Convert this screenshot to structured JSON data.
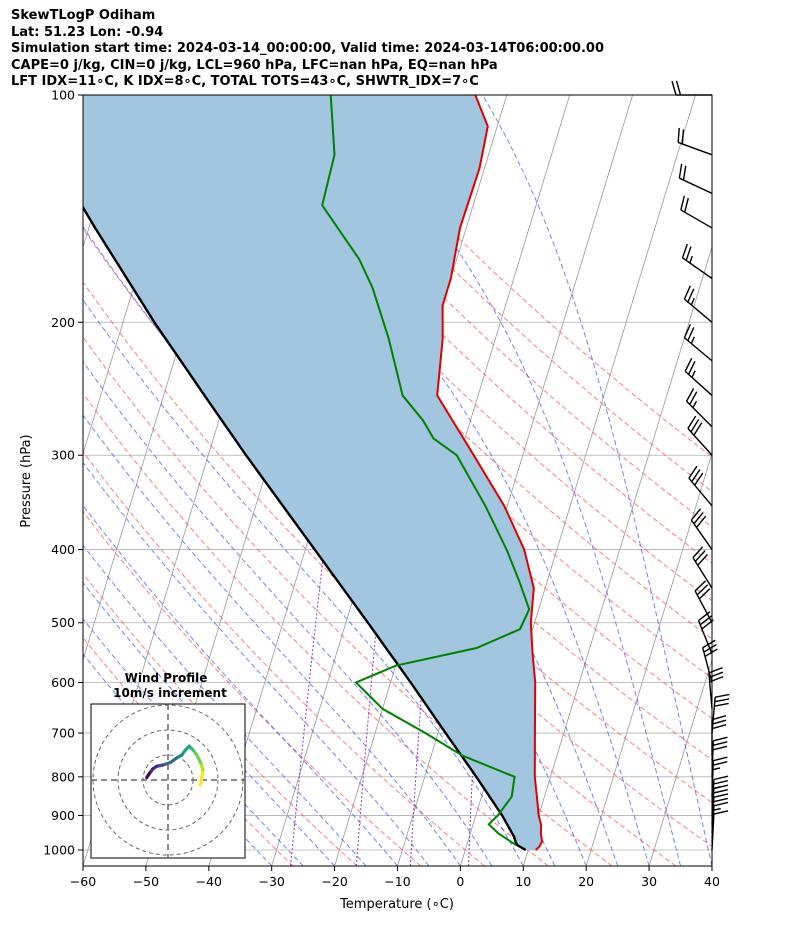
{
  "header": {
    "line1": "SkewTLogP Odiham",
    "line2": "Lat: 51.23   Lon: -0.94",
    "line3": "Simulation start time: 2024-03-14_00:00:00, Valid time: 2024-03-14T06:00:00.00",
    "line4": "CAPE=0 j/kg, CIN=0 j/kg, LCL=960 hPa, LFC=nan hPa, EQ=nan hPa",
    "line5": "LFT IDX=11∘C, K IDX=8∘C, TOTAL TOTS=43∘C, SHWTR_IDX=7∘C"
  },
  "chart_data": {
    "type": "line",
    "xlabel": "Temperature (∘C)",
    "ylabel": "Pressure (hPa)",
    "xlim": [
      -60,
      40
    ],
    "ylim": [
      1050,
      100
    ],
    "y_scale": "log",
    "x_ticks": [
      "−60",
      "−50",
      "−40",
      "−30",
      "−20",
      "−10",
      "0",
      "10",
      "20",
      "30",
      "40"
    ],
    "y_ticks": [
      "1000",
      "900",
      "800",
      "700",
      "600",
      "500",
      "400",
      "300",
      "200",
      "100"
    ],
    "grid": true,
    "colors": {
      "temperature": "#e00000",
      "dewpoint": "#008000",
      "parcel": "#000000",
      "cape_fill": "#a3c6e0",
      "dry_adiabat": "#ff5050",
      "moist_adiabat": "#3050ff",
      "isotherm": "#999999"
    },
    "temperature": [
      [
        1000,
        11.2
      ],
      [
        990,
        11.6
      ],
      [
        975,
        11.8
      ],
      [
        950,
        11.2
      ],
      [
        925,
        10.8
      ],
      [
        900,
        10.0
      ],
      [
        850,
        8.8
      ],
      [
        800,
        7.5
      ],
      [
        700,
        5.4
      ],
      [
        600,
        3.0
      ],
      [
        550,
        1.2
      ],
      [
        500,
        -0.6
      ],
      [
        450,
        -1.8
      ],
      [
        400,
        -5.2
      ],
      [
        350,
        -10.5
      ],
      [
        300,
        -17.8
      ],
      [
        250,
        -26.5
      ],
      [
        210,
        -28.4
      ],
      [
        190,
        -30.0
      ],
      [
        175,
        -30.0
      ],
      [
        150,
        -31.0
      ],
      [
        125,
        -30.8
      ],
      [
        110,
        -31.5
      ],
      [
        100,
        -35.0
      ]
    ],
    "dewpoint": [
      [
        985,
        7.8
      ],
      [
        950,
        4.4
      ],
      [
        925,
        2.5
      ],
      [
        900,
        3.5
      ],
      [
        850,
        4.8
      ],
      [
        800,
        4.3
      ],
      [
        750,
        -5.0
      ],
      [
        700,
        -12.0
      ],
      [
        650,
        -20.0
      ],
      [
        600,
        -25.5
      ],
      [
        570,
        -20.0
      ],
      [
        540,
        -8.0
      ],
      [
        510,
        -2.0
      ],
      [
        480,
        -1.5
      ],
      [
        440,
        -4.5
      ],
      [
        400,
        -8.0
      ],
      [
        350,
        -13.5
      ],
      [
        300,
        -20.5
      ],
      [
        285,
        -25.0
      ],
      [
        270,
        -27.5
      ],
      [
        250,
        -32.0
      ],
      [
        210,
        -37.0
      ],
      [
        180,
        -42.0
      ],
      [
        165,
        -45.5
      ],
      [
        140,
        -54.0
      ],
      [
        120,
        -54.5
      ],
      [
        100,
        -58.0
      ]
    ],
    "parcel": [
      [
        1000,
        9.6
      ],
      [
        985,
        8.0
      ],
      [
        975,
        7.6
      ],
      [
        960,
        7.1
      ],
      [
        900,
        4.2
      ],
      [
        800,
        -1.8
      ],
      [
        700,
        -8.8
      ],
      [
        600,
        -16.8
      ],
      [
        500,
        -26.5
      ],
      [
        400,
        -38.5
      ],
      [
        300,
        -54.0
      ],
      [
        250,
        -63.5
      ],
      [
        200,
        -75.0
      ],
      [
        150,
        -89.0
      ],
      [
        100,
        -108.0
      ]
    ],
    "wind_barbs": [
      [
        1000,
        3,
        12
      ],
      [
        975,
        3,
        15
      ],
      [
        950,
        3,
        19
      ],
      [
        925,
        3,
        22
      ],
      [
        900,
        3,
        25
      ],
      [
        850,
        2,
        27
      ],
      [
        800,
        2,
        29
      ],
      [
        750,
        0,
        30
      ],
      [
        700,
        5,
        30
      ],
      [
        650,
        355,
        29
      ],
      [
        600,
        345,
        28
      ],
      [
        550,
        338,
        28
      ],
      [
        500,
        332,
        28
      ],
      [
        450,
        328,
        28
      ],
      [
        400,
        325,
        28
      ],
      [
        350,
        320,
        28
      ],
      [
        300,
        318,
        28
      ],
      [
        275,
        315,
        27
      ],
      [
        250,
        312,
        27
      ],
      [
        225,
        310,
        26
      ],
      [
        200,
        310,
        25
      ],
      [
        175,
        305,
        23
      ],
      [
        150,
        300,
        22
      ],
      [
        135,
        295,
        21
      ],
      [
        120,
        290,
        21
      ],
      [
        100,
        270,
        20
      ]
    ],
    "inset": {
      "title": "Wind Profile",
      "subtitle": "10m/s increment",
      "rings": [
        10,
        20,
        30
      ],
      "hodograph_uv": [
        [
          13,
          -2
        ],
        [
          13.5,
          1
        ],
        [
          14,
          4
        ],
        [
          13,
          7
        ],
        [
          11.5,
          10
        ],
        [
          10,
          12
        ],
        [
          8.5,
          13.5
        ],
        [
          7,
          12
        ],
        [
          5.5,
          10
        ],
        [
          3,
          8.5
        ],
        [
          1,
          7
        ],
        [
          -2,
          6
        ],
        [
          -4.5,
          5.5
        ],
        [
          -6,
          4.5
        ],
        [
          -7.5,
          2.5
        ],
        [
          -8.5,
          1
        ]
      ]
    }
  }
}
